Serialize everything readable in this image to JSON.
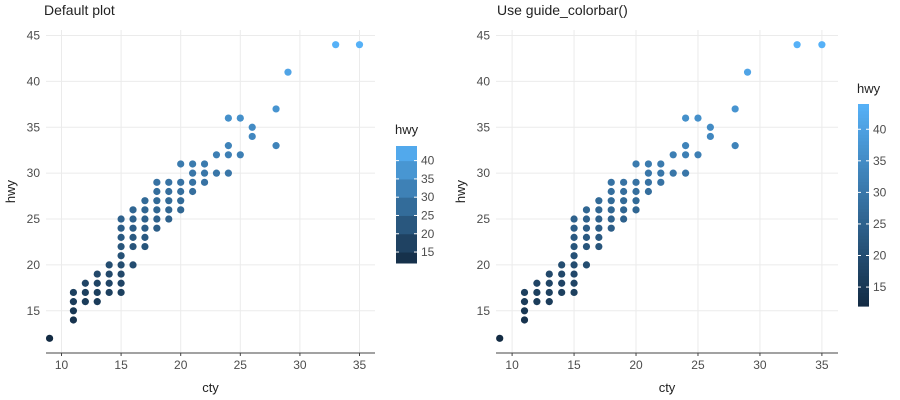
{
  "chart_data": [
    {
      "type": "scatter",
      "title": "Default plot",
      "xlabel": "cty",
      "ylabel": "hwy",
      "xlim": [
        8.7,
        36.3
      ],
      "ylim": [
        10.4,
        45.6
      ],
      "xticks": [
        10,
        15,
        20,
        25,
        30,
        35
      ],
      "yticks": [
        15,
        20,
        25,
        30,
        35,
        40,
        45
      ],
      "grid": true,
      "color_by": "hwy",
      "legend": {
        "title": "hwy",
        "position": "right",
        "kind": "stepped",
        "breaks": [
          15,
          20,
          25,
          30,
          35,
          40
        ],
        "range": [
          12,
          44
        ],
        "low_color": "#132B43",
        "high_color": "#56B1F7"
      },
      "points": [
        [
          9,
          12
        ],
        [
          11,
          14
        ],
        [
          11,
          15
        ],
        [
          11,
          16
        ],
        [
          11,
          17
        ],
        [
          12,
          16
        ],
        [
          12,
          17
        ],
        [
          12,
          18
        ],
        [
          13,
          16
        ],
        [
          13,
          17
        ],
        [
          13,
          18
        ],
        [
          13,
          19
        ],
        [
          14,
          17
        ],
        [
          14,
          18
        ],
        [
          14,
          19
        ],
        [
          14,
          20
        ],
        [
          15,
          17
        ],
        [
          15,
          18
        ],
        [
          15,
          19
        ],
        [
          15,
          20
        ],
        [
          15,
          21
        ],
        [
          15,
          22
        ],
        [
          15,
          23
        ],
        [
          15,
          24
        ],
        [
          15,
          25
        ],
        [
          16,
          20
        ],
        [
          16,
          22
        ],
        [
          16,
          23
        ],
        [
          16,
          24
        ],
        [
          16,
          25
        ],
        [
          16,
          26
        ],
        [
          17,
          22
        ],
        [
          17,
          23
        ],
        [
          17,
          24
        ],
        [
          17,
          25
        ],
        [
          17,
          26
        ],
        [
          17,
          27
        ],
        [
          18,
          24
        ],
        [
          18,
          25
        ],
        [
          18,
          26
        ],
        [
          18,
          27
        ],
        [
          18,
          28
        ],
        [
          18,
          29
        ],
        [
          19,
          25
        ],
        [
          19,
          26
        ],
        [
          19,
          27
        ],
        [
          19,
          28
        ],
        [
          19,
          29
        ],
        [
          20,
          26
        ],
        [
          20,
          27
        ],
        [
          20,
          28
        ],
        [
          20,
          29
        ],
        [
          20,
          31
        ],
        [
          21,
          28
        ],
        [
          21,
          29
        ],
        [
          21,
          30
        ],
        [
          21,
          31
        ],
        [
          22,
          29
        ],
        [
          22,
          30
        ],
        [
          22,
          31
        ],
        [
          23,
          30
        ],
        [
          23,
          32
        ],
        [
          24,
          30
        ],
        [
          24,
          32
        ],
        [
          24,
          33
        ],
        [
          24,
          36
        ],
        [
          25,
          32
        ],
        [
          25,
          36
        ],
        [
          26,
          34
        ],
        [
          26,
          35
        ],
        [
          28,
          33
        ],
        [
          28,
          37
        ],
        [
          29,
          41
        ],
        [
          33,
          44
        ],
        [
          35,
          44
        ]
      ]
    },
    {
      "type": "scatter",
      "title": "Use guide_colorbar()",
      "xlabel": "cty",
      "ylabel": "hwy",
      "xlim": [
        8.7,
        36.3
      ],
      "ylim": [
        10.4,
        45.6
      ],
      "xticks": [
        10,
        15,
        20,
        25,
        30,
        35
      ],
      "yticks": [
        15,
        20,
        25,
        30,
        35,
        40,
        45
      ],
      "grid": true,
      "color_by": "hwy",
      "legend": {
        "title": "hwy",
        "position": "right",
        "kind": "colorbar",
        "breaks": [
          15,
          20,
          25,
          30,
          35,
          40
        ],
        "range": [
          12,
          44
        ],
        "low_color": "#132B43",
        "high_color": "#56B1F7"
      },
      "points": "same-as-panel-1"
    }
  ]
}
